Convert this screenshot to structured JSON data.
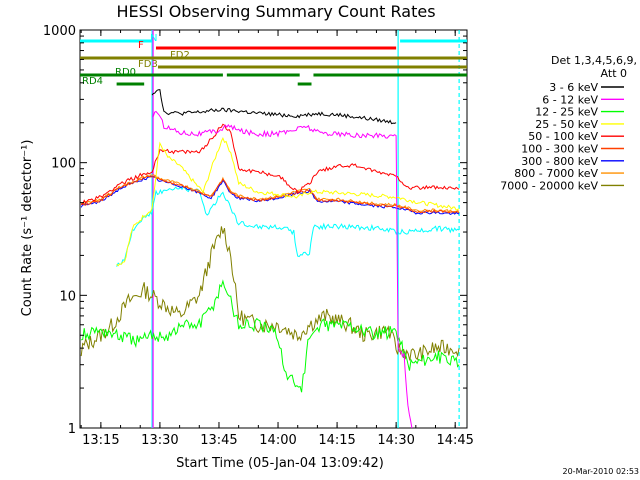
{
  "chart_data": {
    "type": "line",
    "title": "HESSI Observing Summary Count Rates",
    "xlabel": "Start Time (05-Jan-04 13:09:42)",
    "ylabel": "Count Rate (s⁻¹ detector⁻¹)",
    "yscale": "log",
    "ylim": [
      1,
      1000
    ],
    "xlim": [
      "13:09:42",
      "14:48:00"
    ],
    "x_ticks": [
      "13:15",
      "13:30",
      "13:45",
      "14:00",
      "14:15",
      "14:30",
      "14:45"
    ],
    "y_ticks": [
      "1",
      "10",
      "100",
      "1000"
    ],
    "timestamp": "20-Mar-2010 02:53",
    "legend": {
      "header": [
        "Det 1,3,4,5,6,9,",
        "Att 0"
      ],
      "placement": "right"
    },
    "flag_bars": [
      {
        "label": "N",
        "color": "#00ffff",
        "segments": [
          [
            "13:09:42",
            "13:28:00"
          ],
          [
            "14:31:00",
            "14:48:00"
          ]
        ]
      },
      {
        "label": "F",
        "color": "#ff0000",
        "segments": [
          [
            "13:29:00",
            "14:30:00"
          ]
        ]
      },
      {
        "label": "FD2",
        "color": "#808000",
        "segments": [
          [
            "13:09:42",
            "14:48:00"
          ]
        ]
      },
      {
        "label": "FD3",
        "color": "#808000",
        "segments": [
          [
            "13:29:30",
            "14:48:00"
          ]
        ]
      },
      {
        "label": "RD0",
        "color": "#008000",
        "segments": [
          [
            "13:09:42",
            "13:46:00"
          ],
          [
            "13:47:00",
            "14:05:30"
          ],
          [
            "14:09:00",
            "14:48:00"
          ]
        ]
      },
      {
        "label": "RD4",
        "color": "#008000",
        "segments": [
          [
            "13:19:00",
            "13:26:00"
          ],
          [
            "14:05:00",
            "14:08:30"
          ]
        ]
      }
    ],
    "vertical_markers": [
      {
        "time": "13:28:00",
        "color": "#00ffff",
        "style": "solid"
      },
      {
        "time": "13:28:00",
        "color": "#ff00ff",
        "style": "solid"
      },
      {
        "time": "14:30:30",
        "color": "#00ffff",
        "style": "solid"
      },
      {
        "time": "14:46:00",
        "color": "#00ffff",
        "style": "dashed"
      }
    ],
    "series": [
      {
        "name": "3 - 6 keV",
        "color": "#000000",
        "points": [
          [
            "13:28:00",
            330
          ],
          [
            "13:29:00",
            350
          ],
          [
            "13:30:00",
            360
          ],
          [
            "13:31:00",
            240
          ],
          [
            "13:35:00",
            235
          ],
          [
            "13:40:00",
            240
          ],
          [
            "13:45:00",
            250
          ],
          [
            "13:50:00",
            245
          ],
          [
            "13:55:00",
            235
          ],
          [
            "14:00:00",
            230
          ],
          [
            "14:05:00",
            225
          ],
          [
            "14:10:00",
            235
          ],
          [
            "14:15:00",
            230
          ],
          [
            "14:20:00",
            220
          ],
          [
            "14:25:00",
            210
          ],
          [
            "14:30:00",
            200
          ]
        ]
      },
      {
        "name": "6 - 12 keV",
        "color": "#ff00ff",
        "points": [
          [
            "13:28:00",
            220
          ],
          [
            "13:29:00",
            250
          ],
          [
            "13:31:00",
            190
          ],
          [
            "13:35:00",
            170
          ],
          [
            "13:40:00",
            165
          ],
          [
            "13:45:00",
            175
          ],
          [
            "13:47:00",
            190
          ],
          [
            "13:50:00",
            175
          ],
          [
            "13:55:00",
            165
          ],
          [
            "14:00:00",
            165
          ],
          [
            "14:05:00",
            180
          ],
          [
            "14:07:00",
            190
          ],
          [
            "14:10:00",
            170
          ],
          [
            "14:15:00",
            165
          ],
          [
            "14:20:00",
            160
          ],
          [
            "14:25:00",
            160
          ],
          [
            "14:30:00",
            160
          ],
          [
            "14:30:30",
            4
          ],
          [
            "14:32:00",
            3.5
          ],
          [
            "14:33:00",
            1.5
          ],
          [
            "14:34:00",
            1
          ]
        ]
      },
      {
        "name": "12 - 25 keV",
        "color": "#00ff00",
        "points": [
          [
            "13:10:00",
            5
          ],
          [
            "13:15:00",
            5.5
          ],
          [
            "13:19:00",
            5
          ],
          [
            "13:25:00",
            4.5
          ],
          [
            "13:28:00",
            5
          ],
          [
            "13:32:00",
            5
          ],
          [
            "13:36:00",
            6
          ],
          [
            "13:40:00",
            6
          ],
          [
            "13:44:00",
            9
          ],
          [
            "13:46:00",
            13
          ],
          [
            "13:48:00",
            9
          ],
          [
            "13:50:00",
            6
          ],
          [
            "13:55:00",
            6
          ],
          [
            "14:00:00",
            5
          ],
          [
            "14:02:00",
            2.5
          ],
          [
            "14:06:00",
            2
          ],
          [
            "14:08:00",
            5
          ],
          [
            "14:12:00",
            6
          ],
          [
            "14:18:00",
            6
          ],
          [
            "14:25:00",
            5
          ],
          [
            "14:30:00",
            5.5
          ],
          [
            "14:33:00",
            3
          ],
          [
            "14:40:00",
            3.5
          ],
          [
            "14:46:00",
            3
          ]
        ]
      },
      {
        "name": "25 - 50 keV",
        "color": "#ffff00",
        "points": [
          [
            "13:19:00",
            17
          ],
          [
            "13:21:00",
            18
          ],
          [
            "13:23:00",
            32
          ],
          [
            "13:26:00",
            40
          ],
          [
            "13:28:00",
            45
          ],
          [
            "13:30:00",
            140
          ],
          [
            "13:32:00",
            110
          ],
          [
            "13:35:00",
            95
          ],
          [
            "13:38:00",
            75
          ],
          [
            "13:41:00",
            60
          ],
          [
            "13:43:00",
            90
          ],
          [
            "13:46:00",
            155
          ],
          [
            "13:48:00",
            120
          ],
          [
            "13:50:00",
            70
          ],
          [
            "13:55:00",
            60
          ],
          [
            "14:00:00",
            58
          ],
          [
            "14:05:00",
            55
          ],
          [
            "14:08:00",
            60
          ],
          [
            "14:12:00",
            60
          ],
          [
            "14:20:00",
            58
          ],
          [
            "14:30:00",
            55
          ],
          [
            "14:36:00",
            50
          ],
          [
            "14:46:00",
            45
          ]
        ]
      },
      {
        "name": "50 - 100 keV",
        "color": "#ff0000",
        "points": [
          [
            "13:10:00",
            50
          ],
          [
            "13:15:00",
            55
          ],
          [
            "13:20:00",
            70
          ],
          [
            "13:25:00",
            80
          ],
          [
            "13:28:00",
            85
          ],
          [
            "13:30:00",
            125
          ],
          [
            "13:35:00",
            120
          ],
          [
            "13:40:00",
            120
          ],
          [
            "13:43:00",
            150
          ],
          [
            "13:46:00",
            195
          ],
          [
            "13:48:00",
            170
          ],
          [
            "13:50:00",
            90
          ],
          [
            "13:55:00",
            85
          ],
          [
            "14:00:00",
            80
          ],
          [
            "14:05:00",
            60
          ],
          [
            "14:08:00",
            70
          ],
          [
            "14:10:00",
            85
          ],
          [
            "14:15:00",
            95
          ],
          [
            "14:20:00",
            95
          ],
          [
            "14:25:00",
            85
          ],
          [
            "14:30:00",
            80
          ],
          [
            "14:33:00",
            65
          ],
          [
            "14:40:00",
            65
          ],
          [
            "14:46:00",
            63
          ]
        ]
      },
      {
        "name": "100 - 300 keV",
        "color": "#ff4000",
        "points": [
          [
            "13:10:00",
            48
          ],
          [
            "13:15:00",
            52
          ],
          [
            "13:20:00",
            65
          ],
          [
            "13:25:00",
            75
          ],
          [
            "13:28:00",
            80
          ],
          [
            "13:30:00",
            75
          ],
          [
            "13:35:00",
            68
          ],
          [
            "13:40:00",
            60
          ],
          [
            "13:43:00",
            55
          ],
          [
            "13:46:00",
            75
          ],
          [
            "13:48:00",
            60
          ],
          [
            "13:50:00",
            55
          ],
          [
            "13:55:00",
            52
          ],
          [
            "14:00:00",
            55
          ],
          [
            "14:05:00",
            60
          ],
          [
            "14:08:00",
            62
          ],
          [
            "14:10:00",
            52
          ],
          [
            "14:15:00",
            52
          ],
          [
            "14:20:00",
            50
          ],
          [
            "14:25:00",
            48
          ],
          [
            "14:30:00",
            47
          ],
          [
            "14:35:00",
            43
          ],
          [
            "14:40:00",
            43
          ],
          [
            "14:46:00",
            42
          ]
        ]
      },
      {
        "name": "300 - 800 keV",
        "color": "#0000ff",
        "points": [
          [
            "13:10:00",
            47
          ],
          [
            "13:15:00",
            51
          ],
          [
            "13:20:00",
            64
          ],
          [
            "13:25:00",
            74
          ],
          [
            "13:28:00",
            78
          ],
          [
            "13:30:00",
            73
          ],
          [
            "13:35:00",
            67
          ],
          [
            "13:40:00",
            59
          ],
          [
            "13:43:00",
            54
          ],
          [
            "13:46:00",
            73
          ],
          [
            "13:48:00",
            59
          ],
          [
            "13:50:00",
            54
          ],
          [
            "13:55:00",
            51
          ],
          [
            "14:00:00",
            54
          ],
          [
            "14:05:00",
            59
          ],
          [
            "14:08:00",
            61
          ],
          [
            "14:10:00",
            51
          ],
          [
            "14:15:00",
            51
          ],
          [
            "14:20:00",
            49
          ],
          [
            "14:25:00",
            47
          ],
          [
            "14:30:00",
            46
          ],
          [
            "14:35:00",
            42
          ],
          [
            "14:40:00",
            42
          ],
          [
            "14:46:00",
            41
          ]
        ]
      },
      {
        "name": "800 - 7000 keV",
        "color": "#ff9000",
        "points": [
          [
            "13:10:00",
            49
          ],
          [
            "13:15:00",
            53
          ],
          [
            "13:20:00",
            66
          ],
          [
            "13:25:00",
            76
          ],
          [
            "13:28:00",
            81
          ],
          [
            "13:30:00",
            76
          ],
          [
            "13:35:00",
            69
          ],
          [
            "13:40:00",
            61
          ],
          [
            "13:43:00",
            56
          ],
          [
            "13:46:00",
            76
          ],
          [
            "13:48:00",
            61
          ],
          [
            "13:50:00",
            56
          ],
          [
            "13:55:00",
            53
          ],
          [
            "14:00:00",
            56
          ],
          [
            "14:05:00",
            61
          ],
          [
            "14:08:00",
            63
          ],
          [
            "14:10:00",
            53
          ],
          [
            "14:15:00",
            53
          ],
          [
            "14:20:00",
            51
          ],
          [
            "14:25:00",
            49
          ],
          [
            "14:30:00",
            48
          ],
          [
            "14:35:00",
            44
          ],
          [
            "14:40:00",
            44
          ],
          [
            "14:46:00",
            43
          ]
        ]
      },
      {
        "name": "7000 - 20000 keV",
        "color": "#808000",
        "points": [
          [
            "13:10:00",
            4
          ],
          [
            "13:15:00",
            5
          ],
          [
            "13:18:00",
            6
          ],
          [
            "13:22:00",
            9
          ],
          [
            "13:26:00",
            11
          ],
          [
            "13:30:00",
            9
          ],
          [
            "13:35:00",
            7
          ],
          [
            "13:40:00",
            10
          ],
          [
            "13:43:00",
            20
          ],
          [
            "13:46:00",
            33
          ],
          [
            "13:48:00",
            20
          ],
          [
            "13:50:00",
            7
          ],
          [
            "13:55:00",
            6
          ],
          [
            "14:00:00",
            6
          ],
          [
            "14:05:00",
            5
          ],
          [
            "14:08:00",
            6
          ],
          [
            "14:12:00",
            7
          ],
          [
            "14:18:00",
            6
          ],
          [
            "14:22:00",
            5
          ],
          [
            "14:28:00",
            5.5
          ],
          [
            "14:30:00",
            4
          ],
          [
            "14:35:00",
            3.5
          ],
          [
            "14:40:00",
            4
          ],
          [
            "14:46:00",
            4
          ]
        ]
      }
    ],
    "extra_lines": [
      {
        "color": "#00ffff",
        "points": [
          [
            "13:19:00",
            17
          ],
          [
            "13:21:00",
            18
          ],
          [
            "13:23:00",
            30
          ],
          [
            "13:26:00",
            40
          ],
          [
            "13:28:00",
            42
          ],
          [
            "13:29:00",
            60
          ],
          [
            "13:32:00",
            62
          ],
          [
            "13:36:00",
            65
          ],
          [
            "13:40:00",
            60
          ],
          [
            "13:42:00",
            40
          ],
          [
            "13:44:00",
            50
          ],
          [
            "13:46:00",
            60
          ],
          [
            "13:50:00",
            35
          ],
          [
            "13:55:00",
            33
          ],
          [
            "14:00:00",
            33
          ],
          [
            "14:04:00",
            30
          ],
          [
            "14:05:00",
            20
          ],
          [
            "14:08:00",
            21
          ],
          [
            "14:09:00",
            33
          ],
          [
            "14:15:00",
            33
          ],
          [
            "14:25:00",
            32
          ],
          [
            "14:30:00",
            30
          ],
          [
            "14:33:00",
            30
          ],
          [
            "14:40:00",
            32
          ],
          [
            "14:46:00",
            31
          ]
        ]
      }
    ]
  }
}
